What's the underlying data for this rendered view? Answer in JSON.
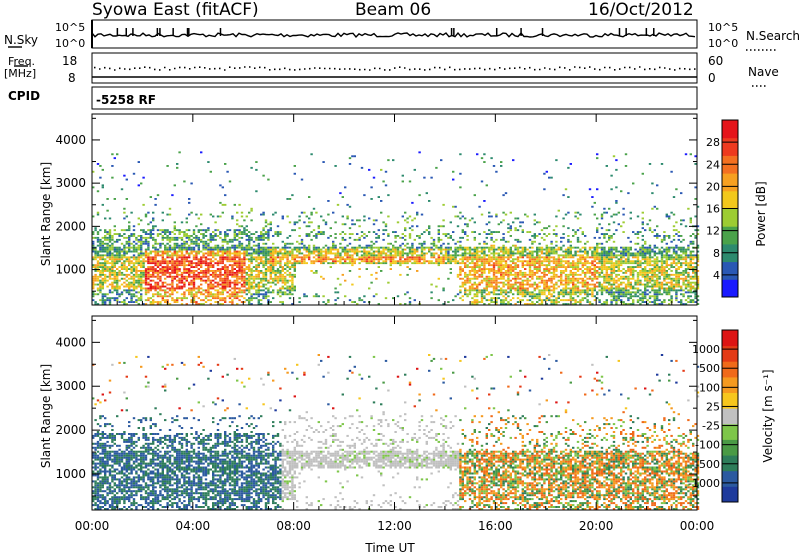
{
  "header": {
    "station": "Syowa East (fitACF)",
    "beam": "Beam 06",
    "date": "16/Oct/2012"
  },
  "top_panels": {
    "nsky_label": "N.Sky",
    "nsky_ticks": [
      "10^5",
      "10^0"
    ],
    "nsearch_label": "N.Search",
    "nsearch_ticks": [
      "10^5",
      "10^0"
    ],
    "freq_label": "Freq.",
    "freq_unit": "[MHz]",
    "freq_ticks": [
      "18",
      "8"
    ],
    "nave_label": "Nave",
    "nave_ticks": [
      "60",
      "0"
    ],
    "cpid_label": "CPID",
    "cpid_value": "-5258 RF"
  },
  "chart_data": [
    {
      "type": "heatmap",
      "name": "Power",
      "ylabel": "Slant Range [km]",
      "xlabel": "Time UT",
      "x_ticks": [
        "00:00",
        "04:00",
        "08:00",
        "12:00",
        "16:00",
        "20:00",
        "00:00"
      ],
      "x_range_hours": [
        0,
        24
      ],
      "y_ticks": [
        1000,
        2000,
        3000,
        4000
      ],
      "ylim": [
        180,
        4600
      ],
      "colorbar": {
        "label": "Power [dB]",
        "ticks": [
          "4",
          "8",
          "12",
          "16",
          "20",
          "24",
          "28"
        ],
        "colors": [
          "#1a1aff",
          "#2a58b4",
          "#2d8a6e",
          "#4aa24a",
          "#9dcc33",
          "#f2c81c",
          "#f7a020",
          "#f47021",
          "#ee3a1f",
          "#e5141a"
        ]
      }
    },
    {
      "type": "heatmap",
      "name": "Velocity",
      "ylabel": "Slant Range [km]",
      "xlabel": "Time UT",
      "x_ticks": [
        "00:00",
        "04:00",
        "08:00",
        "12:00",
        "16:00",
        "20:00",
        "00:00"
      ],
      "x_range_hours": [
        0,
        24
      ],
      "y_ticks": [
        1000,
        2000,
        3000,
        4000
      ],
      "ylim": [
        180,
        4600
      ],
      "colorbar": {
        "label": "Velocity [m s⁻¹]",
        "ticks": [
          "1000",
          "500",
          "100",
          "25",
          "-25",
          "-100",
          "-500",
          "-1000"
        ],
        "colors": [
          "#1e3a9c",
          "#2c5aa0",
          "#2e7d5a",
          "#4a9a45",
          "#7ec64a",
          "#c0c0c0",
          "#f6c61e",
          "#f59a1f",
          "#f06a1a",
          "#e43a16",
          "#dd1414"
        ]
      }
    }
  ]
}
